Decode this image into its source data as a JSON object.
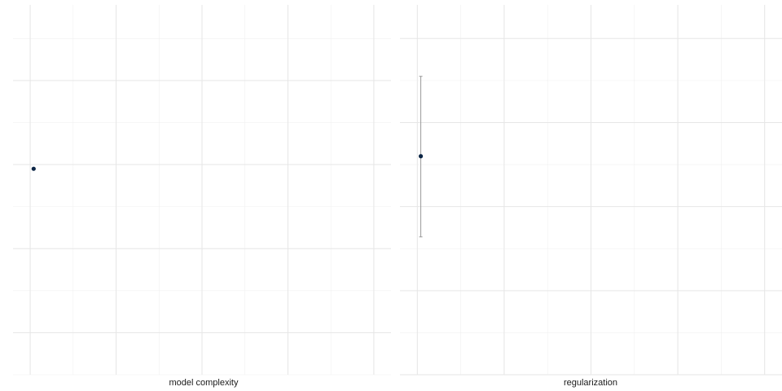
{
  "chart_data": [
    {
      "type": "scatter",
      "title": "",
      "xlabel": "model complexity",
      "ylabel": "",
      "grid": true,
      "xlim": [
        0,
        4.4
      ],
      "ylim": [
        0,
        4.4
      ],
      "x_major_ticks": [
        0.2,
        1.2,
        2.2,
        3.2,
        4.2
      ],
      "x_minor_ticks": [
        0.7,
        1.7,
        2.7,
        3.7
      ],
      "y_major_ticks": [
        0.5,
        1.5,
        2.5,
        3.5
      ],
      "y_minor_ticks": [
        0.0,
        1.0,
        2.0,
        3.0,
        4.0
      ],
      "points": [
        {
          "x": 0.24,
          "y": 2.45
        }
      ],
      "point_color": "#0b2545"
    },
    {
      "type": "scatter",
      "title": "",
      "xlabel": "regularization",
      "ylabel": "",
      "grid": true,
      "xlim": [
        0,
        4.4
      ],
      "ylim": [
        0,
        4.4
      ],
      "x_major_ticks": [
        0.2,
        1.2,
        2.2,
        3.2,
        4.2
      ],
      "x_minor_ticks": [
        0.7,
        1.7,
        2.7,
        3.7
      ],
      "y_major_ticks": [
        0.0,
        1.0,
        2.0,
        3.0,
        4.0
      ],
      "y_minor_ticks": [
        0.5,
        1.5,
        2.5,
        3.5
      ],
      "points": [
        {
          "x": 0.24,
          "y": 2.6,
          "ymin": 1.64,
          "ymax": 3.55
        }
      ],
      "point_color": "#0b2545",
      "errorbar_color": "#9a9a9a"
    }
  ]
}
